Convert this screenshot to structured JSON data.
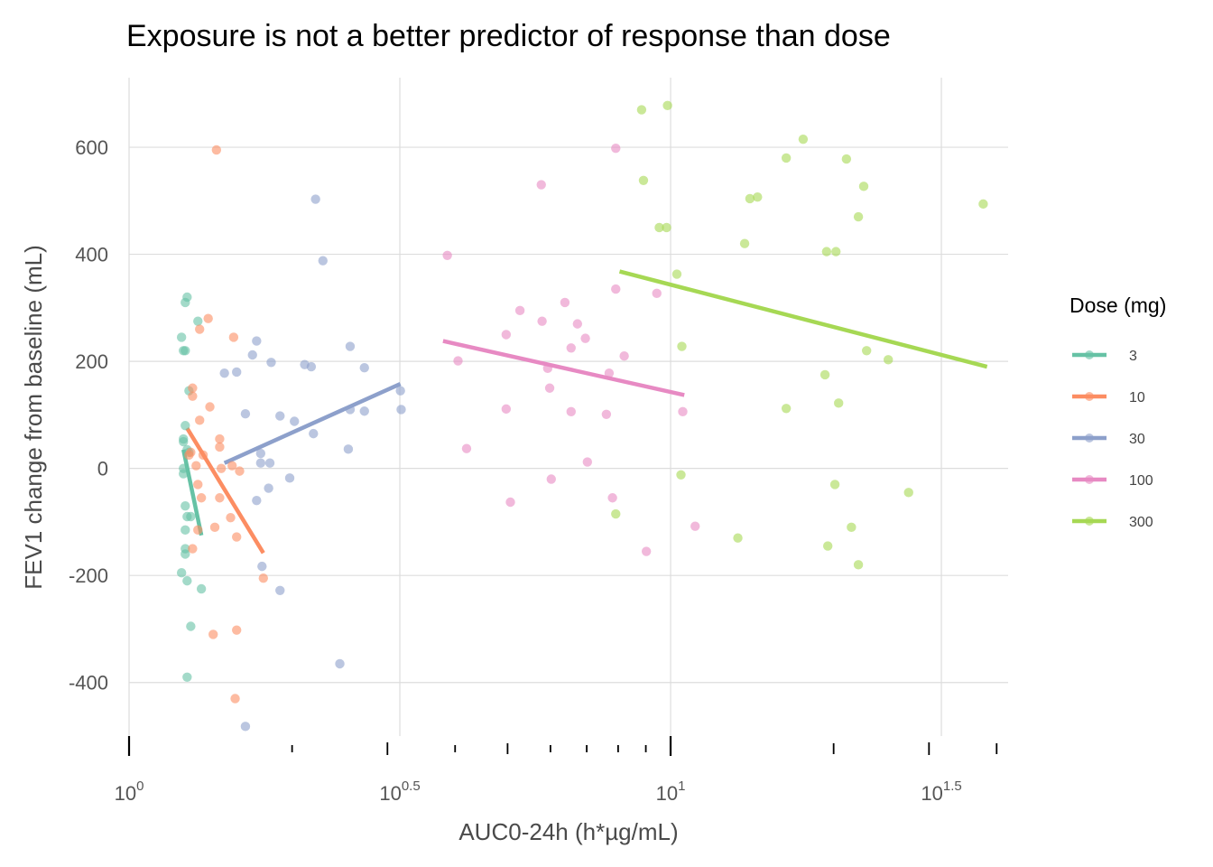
{
  "chart_data": {
    "type": "scatter",
    "title": "Exposure is not a better predictor of response than dose",
    "xlabel": "AUC0-24h (h*µg/mL)",
    "ylabel": "FEV1 change from baseline (mL)",
    "x_scale": "log10",
    "xlim": [
      1,
      42
    ],
    "ylim": [
      -500,
      730
    ],
    "x_tick_labels": [
      {
        "base": "10",
        "exp": "0",
        "value": 1
      },
      {
        "base": "10",
        "exp": "0.5",
        "value": 3.1623
      },
      {
        "base": "10",
        "exp": "1",
        "value": 10
      },
      {
        "base": "10",
        "exp": "1.5",
        "value": 31.623
      }
    ],
    "y_ticks": [
      -400,
      -200,
      0,
      200,
      400,
      600
    ],
    "y_tick_labels": [
      "-400",
      "-200",
      "0",
      "200",
      "400",
      "600"
    ],
    "legend_title": "Dose (mg)",
    "legend_position": "right",
    "grid": true,
    "series": [
      {
        "name": "3",
        "color": "#66c2a5",
        "fit": {
          "x": [
            1.26,
            1.36
          ],
          "y": [
            35,
            -125
          ]
        },
        "points": [
          [
            1.27,
            310
          ],
          [
            1.28,
            320
          ],
          [
            1.34,
            275
          ],
          [
            1.25,
            245
          ],
          [
            1.26,
            220
          ],
          [
            1.27,
            220
          ],
          [
            1.29,
            145
          ],
          [
            1.27,
            80
          ],
          [
            1.26,
            55
          ],
          [
            1.26,
            50
          ],
          [
            1.28,
            35
          ],
          [
            1.29,
            30
          ],
          [
            1.26,
            0
          ],
          [
            1.26,
            -10
          ],
          [
            1.27,
            -70
          ],
          [
            1.28,
            -90
          ],
          [
            1.3,
            -90
          ],
          [
            1.27,
            -115
          ],
          [
            1.27,
            -150
          ],
          [
            1.27,
            -160
          ],
          [
            1.25,
            -195
          ],
          [
            1.28,
            -210
          ],
          [
            1.36,
            -225
          ],
          [
            1.3,
            -295
          ],
          [
            1.28,
            -390
          ]
        ]
      },
      {
        "name": "10",
        "color": "#fc8d62",
        "fit": {
          "x": [
            1.28,
            1.77
          ],
          "y": [
            75,
            -158
          ]
        },
        "points": [
          [
            1.45,
            595
          ],
          [
            1.4,
            280
          ],
          [
            1.35,
            260
          ],
          [
            1.56,
            245
          ],
          [
            1.31,
            150
          ],
          [
            1.31,
            135
          ],
          [
            1.41,
            115
          ],
          [
            1.35,
            90
          ],
          [
            1.3,
            30
          ],
          [
            1.29,
            25
          ],
          [
            1.47,
            55
          ],
          [
            1.47,
            40
          ],
          [
            1.37,
            25
          ],
          [
            1.33,
            5
          ],
          [
            1.48,
            0
          ],
          [
            1.55,
            5
          ],
          [
            1.6,
            -5
          ],
          [
            1.34,
            -30
          ],
          [
            1.36,
            -55
          ],
          [
            1.47,
            -55
          ],
          [
            1.54,
            -92
          ],
          [
            1.44,
            -110
          ],
          [
            1.34,
            -115
          ],
          [
            1.31,
            -150
          ],
          [
            1.58,
            -128
          ],
          [
            1.77,
            -205
          ],
          [
            1.43,
            -310
          ],
          [
            1.58,
            -302
          ],
          [
            1.57,
            -430
          ]
        ]
      },
      {
        "name": "30",
        "color": "#8da0cb",
        "fit": {
          "x": [
            1.5,
            3.17
          ],
          "y": [
            10,
            158
          ]
        },
        "points": [
          [
            2.21,
            503
          ],
          [
            2.28,
            388
          ],
          [
            1.72,
            238
          ],
          [
            1.69,
            212
          ],
          [
            2.56,
            228
          ],
          [
            1.83,
            198
          ],
          [
            2.11,
            194
          ],
          [
            2.17,
            190
          ],
          [
            2.72,
            188
          ],
          [
            1.5,
            178
          ],
          [
            1.58,
            180
          ],
          [
            3.17,
            145
          ],
          [
            2.56,
            110
          ],
          [
            2.72,
            107
          ],
          [
            3.18,
            110
          ],
          [
            1.64,
            102
          ],
          [
            1.9,
            98
          ],
          [
            2.02,
            88
          ],
          [
            2.19,
            65
          ],
          [
            2.54,
            36
          ],
          [
            1.75,
            28
          ],
          [
            1.75,
            10
          ],
          [
            1.82,
            10
          ],
          [
            1.98,
            -18
          ],
          [
            1.81,
            -37
          ],
          [
            1.72,
            -60
          ],
          [
            1.76,
            -183
          ],
          [
            1.9,
            -228
          ],
          [
            2.45,
            -365
          ],
          [
            1.64,
            -482
          ]
        ]
      },
      {
        "name": "100",
        "color": "#e78ac3",
        "fit": {
          "x": [
            3.8,
            10.6
          ],
          "y": [
            238,
            137
          ]
        },
        "points": [
          [
            5.77,
            530
          ],
          [
            7.92,
            598
          ],
          [
            3.87,
            398
          ],
          [
            7.92,
            335
          ],
          [
            9.43,
            327
          ],
          [
            6.38,
            310
          ],
          [
            5.27,
            295
          ],
          [
            5.79,
            275
          ],
          [
            6.73,
            270
          ],
          [
            4.97,
            250
          ],
          [
            6.96,
            243
          ],
          [
            6.55,
            225
          ],
          [
            4.05,
            201
          ],
          [
            8.21,
            210
          ],
          [
            5.93,
            187
          ],
          [
            7.7,
            178
          ],
          [
            5.98,
            150
          ],
          [
            4.97,
            111
          ],
          [
            6.55,
            106
          ],
          [
            7.61,
            101
          ],
          [
            10.53,
            106
          ],
          [
            4.2,
            37
          ],
          [
            7.02,
            12
          ],
          [
            6.02,
            -20
          ],
          [
            7.81,
            -55
          ],
          [
            5.06,
            -63
          ],
          [
            11.1,
            -108
          ],
          [
            9.02,
            -155
          ]
        ]
      },
      {
        "name": "300",
        "color": "#a6d854",
        "fit": {
          "x": [
            8.05,
            38.4
          ],
          "y": [
            368,
            190
          ]
        },
        "points": [
          [
            9.87,
            678
          ],
          [
            8.84,
            670
          ],
          [
            17.57,
            615
          ],
          [
            16.35,
            580
          ],
          [
            21.12,
            578
          ],
          [
            8.91,
            538
          ],
          [
            22.73,
            527
          ],
          [
            14.47,
            507
          ],
          [
            14.01,
            504
          ],
          [
            37.78,
            494
          ],
          [
            22.22,
            470
          ],
          [
            9.83,
            450
          ],
          [
            9.53,
            450
          ],
          [
            19.41,
            405
          ],
          [
            20.2,
            405
          ],
          [
            13.7,
            420
          ],
          [
            10.27,
            363
          ],
          [
            10.49,
            228
          ],
          [
            23.01,
            220
          ],
          [
            25.23,
            203
          ],
          [
            19.28,
            175
          ],
          [
            20.43,
            122
          ],
          [
            16.35,
            112
          ],
          [
            10.45,
            -12
          ],
          [
            20.11,
            -30
          ],
          [
            27.51,
            -45
          ],
          [
            7.92,
            -85
          ],
          [
            21.57,
            -110
          ],
          [
            13.31,
            -130
          ],
          [
            19.51,
            -145
          ],
          [
            22.22,
            -180
          ]
        ]
      }
    ]
  }
}
